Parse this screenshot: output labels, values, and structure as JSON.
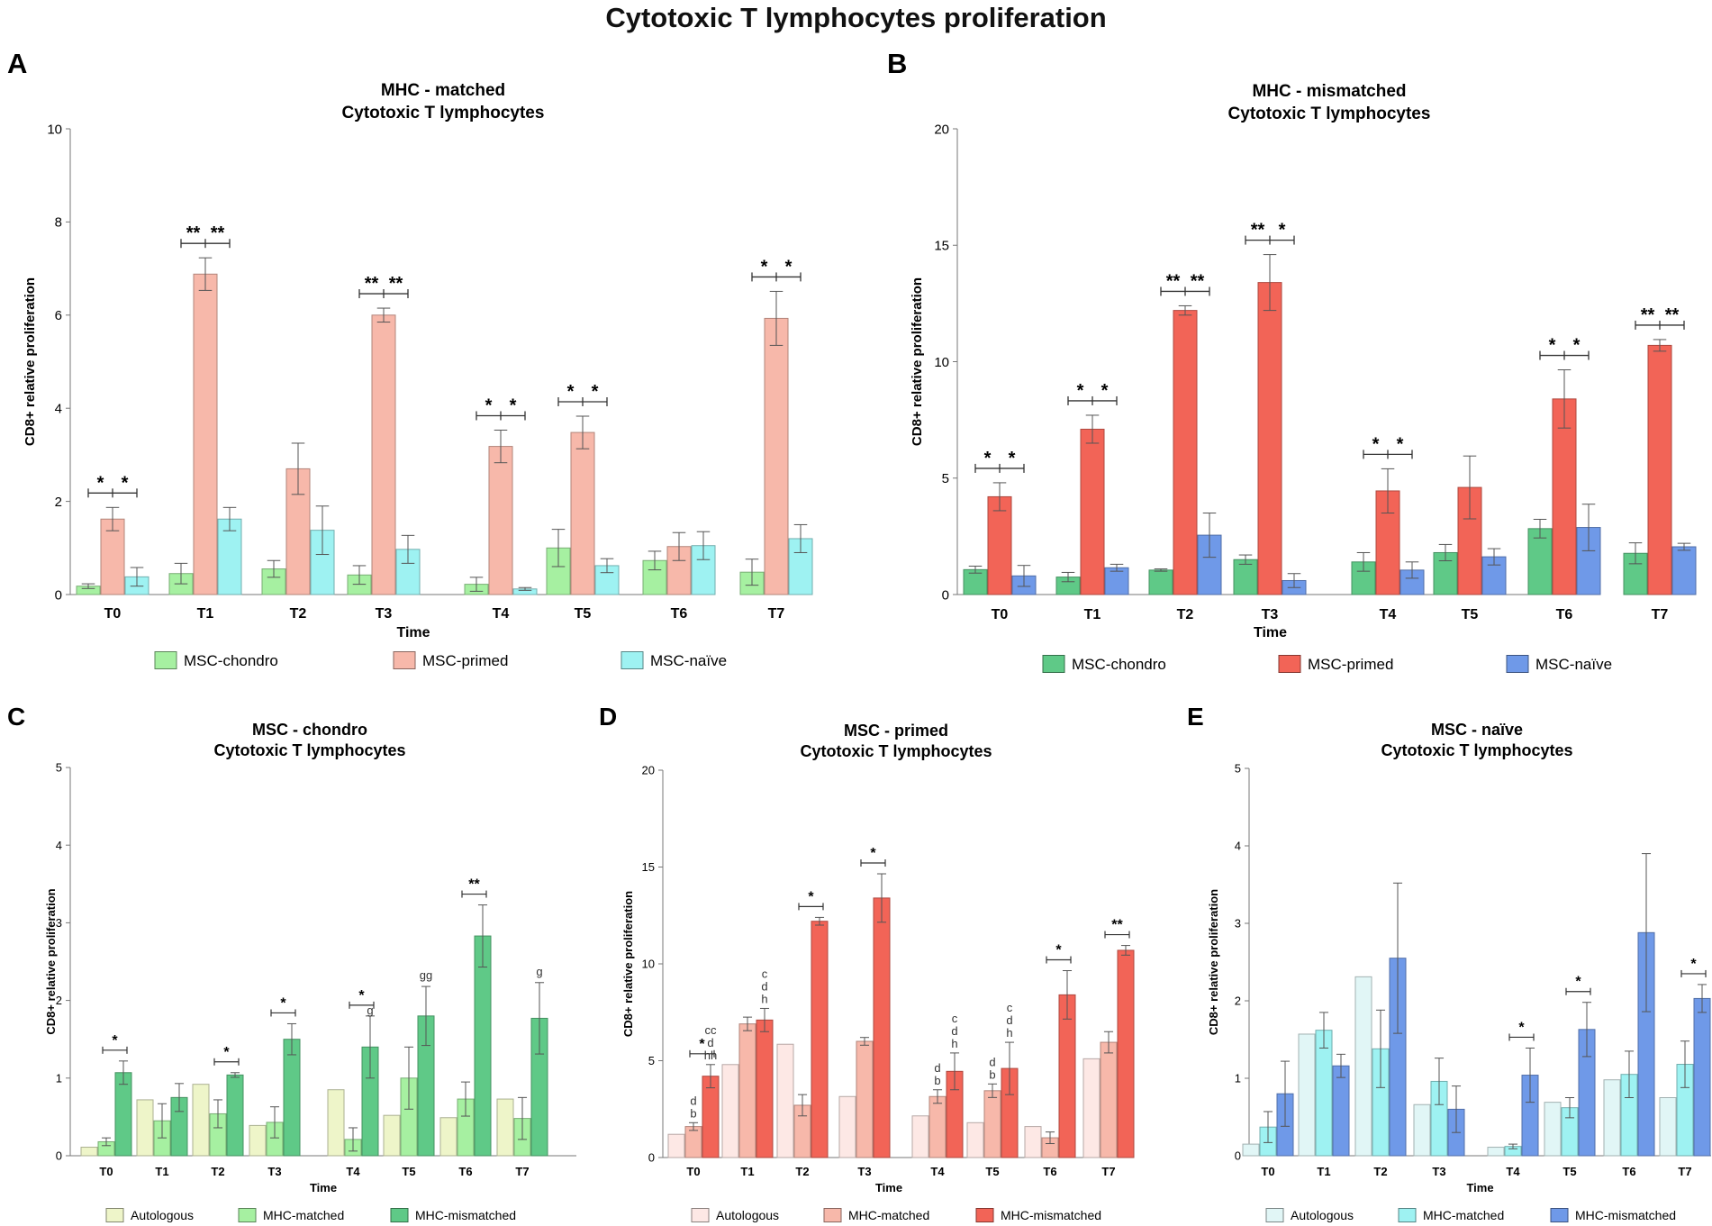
{
  "figure": {
    "title": "Cytotoxic T lymphocytes proliferation"
  },
  "chart_data": [
    {
      "panel": "A",
      "type": "bar",
      "title": [
        "MHC - matched",
        "Cytotoxic T lymphocytes"
      ],
      "xlabel": "Time",
      "ylabel": "CD8+ relative proliferation",
      "ylim": [
        0,
        10
      ],
      "yticks": [
        0,
        2,
        4,
        6,
        8,
        10
      ],
      "categories": [
        "T0",
        "T1",
        "T2",
        "T3",
        "T4",
        "T5",
        "T6",
        "T7"
      ],
      "series": [
        {
          "name": "MSC-chondro",
          "color": "#a6f0a1",
          "values": [
            0.18,
            0.45,
            0.55,
            0.42,
            0.22,
            1.0,
            0.73,
            0.48
          ],
          "errors": [
            0.05,
            0.22,
            0.18,
            0.2,
            0.15,
            0.4,
            0.2,
            0.28
          ]
        },
        {
          "name": "MSC-primed",
          "color": "#f7b8aa",
          "values": [
            1.62,
            6.88,
            2.7,
            6.0,
            3.18,
            3.48,
            1.03,
            5.93
          ],
          "errors": [
            0.25,
            0.35,
            0.55,
            0.15,
            0.35,
            0.35,
            0.3,
            0.58
          ]
        },
        {
          "name": "MSC-naïve",
          "color": "#9ef2f2",
          "values": [
            0.38,
            1.62,
            1.38,
            0.97,
            0.12,
            0.62,
            1.05,
            1.2
          ],
          "errors": [
            0.2,
            0.25,
            0.52,
            0.3,
            0.03,
            0.15,
            0.3,
            0.3
          ]
        }
      ],
      "significance": [
        [
          "*",
          "*"
        ],
        [
          "**",
          "**"
        ],
        null,
        [
          "**",
          "**"
        ],
        [
          "*",
          "*"
        ],
        [
          "*",
          "*"
        ],
        null,
        [
          "*",
          "*"
        ]
      ]
    },
    {
      "panel": "B",
      "type": "bar",
      "title": [
        "MHC - mismatched",
        "Cytotoxic T lymphocytes"
      ],
      "xlabel": "Time",
      "ylabel": "CD8+ relative proliferation",
      "ylim": [
        0,
        20
      ],
      "yticks": [
        0,
        5,
        10,
        15,
        20
      ],
      "categories": [
        "T0",
        "T1",
        "T2",
        "T3",
        "T4",
        "T5",
        "T6",
        "T7"
      ],
      "series": [
        {
          "name": "MSC-chondro",
          "color": "#5fc987",
          "values": [
            1.07,
            0.75,
            1.05,
            1.5,
            1.4,
            1.8,
            2.83,
            1.77
          ],
          "errors": [
            0.15,
            0.2,
            0.05,
            0.2,
            0.4,
            0.35,
            0.4,
            0.45
          ]
        },
        {
          "name": "MSC-primed",
          "color": "#f26457",
          "values": [
            4.2,
            7.1,
            12.2,
            13.4,
            4.45,
            4.6,
            8.4,
            10.7
          ],
          "errors": [
            0.6,
            0.6,
            0.2,
            1.2,
            0.95,
            1.35,
            1.25,
            0.25
          ]
        },
        {
          "name": "MSC-naïve",
          "color": "#6f99e8",
          "values": [
            0.8,
            1.15,
            2.55,
            0.6,
            1.05,
            1.62,
            2.88,
            2.05
          ],
          "errors": [
            0.45,
            0.15,
            0.95,
            0.3,
            0.35,
            0.35,
            1.0,
            0.15
          ]
        }
      ],
      "significance": [
        [
          "*",
          "*"
        ],
        [
          "*",
          "*"
        ],
        [
          "**",
          "**"
        ],
        [
          "**",
          "*"
        ],
        [
          "*",
          "*"
        ],
        null,
        [
          "*",
          "*"
        ],
        [
          "**",
          "**"
        ]
      ]
    },
    {
      "panel": "C",
      "type": "bar",
      "title": [
        "MSC - chondro",
        "Cytotoxic T lymphocytes"
      ],
      "xlabel": "Time",
      "ylabel": "CD8+ relative proliferation",
      "ylim": [
        0,
        5
      ],
      "yticks": [
        0,
        1,
        2,
        3,
        4,
        5
      ],
      "categories": [
        "T0",
        "T1",
        "T2",
        "T3",
        "T4",
        "T5",
        "T6",
        "T7"
      ],
      "series": [
        {
          "name": "Autologous",
          "color": "#eef5c9",
          "values": [
            0.11,
            0.72,
            0.92,
            0.39,
            0.85,
            0.52,
            0.49,
            0.73
          ],
          "errors": [
            0,
            0,
            0,
            0,
            0,
            0,
            0,
            0
          ]
        },
        {
          "name": "MHC-matched",
          "color": "#a6f0a1",
          "values": [
            0.18,
            0.45,
            0.54,
            0.43,
            0.21,
            1.0,
            0.73,
            0.48
          ],
          "errors": [
            0.05,
            0.22,
            0.18,
            0.2,
            0.15,
            0.4,
            0.22,
            0.27
          ]
        },
        {
          "name": "MHC-mismatched",
          "color": "#5fc987",
          "values": [
            1.07,
            0.75,
            1.04,
            1.5,
            1.4,
            1.8,
            2.83,
            1.77
          ],
          "errors": [
            0.15,
            0.18,
            0.03,
            0.2,
            0.4,
            0.38,
            0.4,
            0.46
          ]
        }
      ],
      "significance": [
        "*",
        null,
        "*",
        "*",
        "*",
        null,
        "**",
        null
      ],
      "letters": [
        null,
        null,
        null,
        null,
        "g",
        "gg",
        null,
        "g"
      ]
    },
    {
      "panel": "D",
      "type": "bar",
      "title": [
        "MSC - primed",
        "Cytotoxic T lymphocytes"
      ],
      "xlabel": "Time",
      "ylabel": "CD8+ relative proliferation",
      "ylim": [
        0,
        20
      ],
      "yticks": [
        0,
        5,
        10,
        15,
        20
      ],
      "categories": [
        "T0",
        "T1",
        "T2",
        "T3",
        "T4",
        "T5",
        "T6",
        "T7"
      ],
      "series": [
        {
          "name": "Autologous",
          "color": "#fde8e5",
          "values": [
            1.2,
            4.8,
            5.85,
            3.15,
            2.15,
            1.8,
            1.6,
            5.1
          ],
          "errors": [
            0,
            0,
            0,
            0,
            0,
            0,
            0,
            0
          ]
        },
        {
          "name": "MHC-matched",
          "color": "#f7b8aa",
          "values": [
            1.6,
            6.9,
            2.7,
            6.0,
            3.15,
            3.45,
            1.02,
            5.95
          ],
          "errors": [
            0.2,
            0.35,
            0.55,
            0.2,
            0.35,
            0.35,
            0.3,
            0.55
          ]
        },
        {
          "name": "MHC-mismatched",
          "color": "#f26457",
          "values": [
            4.2,
            7.1,
            12.2,
            13.4,
            4.45,
            4.6,
            8.4,
            10.7
          ],
          "errors": [
            0.6,
            0.6,
            0.2,
            1.25,
            0.95,
            1.35,
            1.25,
            0.25
          ]
        }
      ],
      "significance": [
        "*",
        null,
        "*",
        "*",
        null,
        null,
        "*",
        "**"
      ],
      "letters_matched": [
        [
          "d",
          "b"
        ],
        null,
        null,
        null,
        [
          "d",
          "b"
        ],
        [
          "d",
          "b"
        ],
        null,
        null
      ],
      "letters_mismatched": [
        [
          "cc",
          "d",
          "hh"
        ],
        [
          "c",
          "d",
          "h"
        ],
        null,
        null,
        [
          "c",
          "d",
          "h"
        ],
        [
          "c",
          "d",
          "h"
        ],
        null,
        null
      ]
    },
    {
      "panel": "E",
      "type": "bar",
      "title": [
        "MSC - naïve",
        "Cytotoxic T lymphocytes"
      ],
      "xlabel": "Time",
      "ylabel": "CD8+ relative proliferation",
      "ylim": [
        0,
        5
      ],
      "yticks": [
        0,
        1,
        2,
        3,
        4,
        5
      ],
      "categories": [
        "T0",
        "T1",
        "T2",
        "T3",
        "T4",
        "T5",
        "T6",
        "T7"
      ],
      "series": [
        {
          "name": "Autologous",
          "color": "#e1f6f6",
          "values": [
            0.15,
            1.57,
            2.31,
            0.66,
            0.11,
            0.69,
            0.98,
            0.75
          ],
          "errors": [
            0,
            0,
            0,
            0,
            0,
            0,
            0,
            0
          ]
        },
        {
          "name": "MHC-matched",
          "color": "#9ef2f2",
          "values": [
            0.37,
            1.62,
            1.38,
            0.96,
            0.12,
            0.62,
            1.05,
            1.18
          ],
          "errors": [
            0.2,
            0.23,
            0.5,
            0.3,
            0.03,
            0.13,
            0.3,
            0.3
          ]
        },
        {
          "name": "MHC-mismatched",
          "color": "#6f99e8",
          "values": [
            0.8,
            1.16,
            2.55,
            0.6,
            1.04,
            1.63,
            2.88,
            2.03
          ],
          "errors": [
            0.42,
            0.15,
            0.97,
            0.3,
            0.35,
            0.35,
            1.02,
            0.18
          ]
        }
      ],
      "significance": [
        null,
        null,
        null,
        null,
        "*",
        "*",
        null,
        "*"
      ]
    }
  ]
}
